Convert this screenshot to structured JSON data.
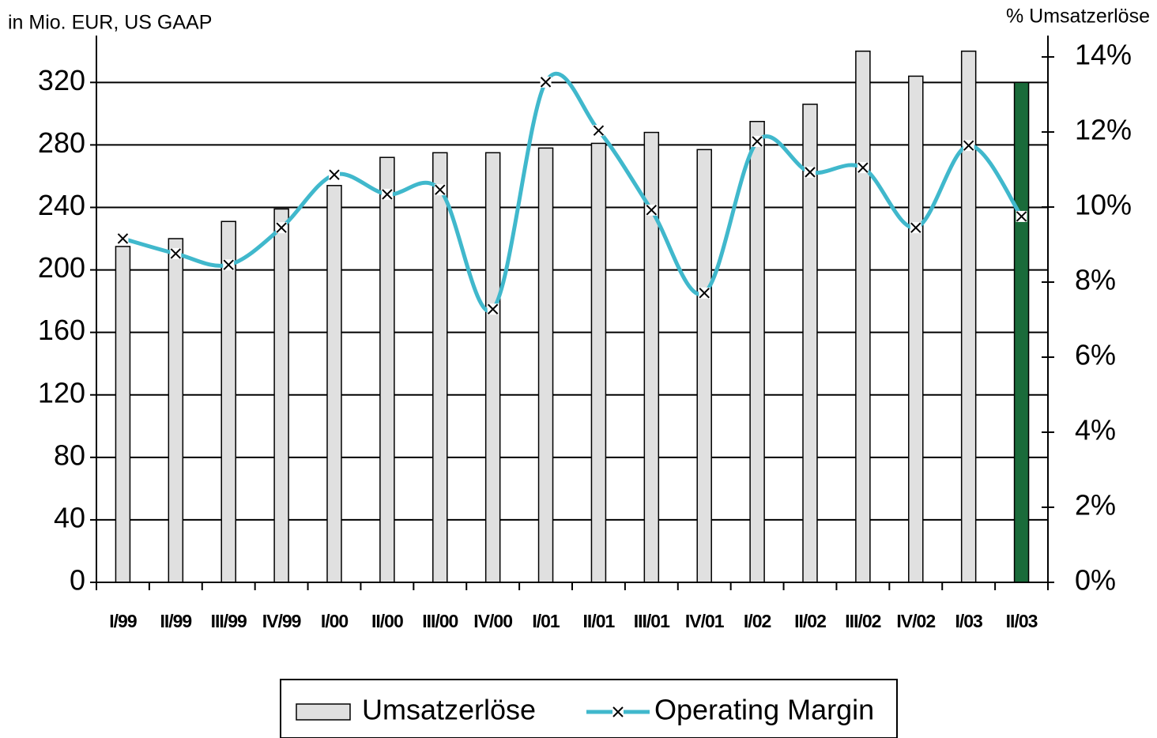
{
  "chart_data": {
    "type": "bar_line",
    "y_label": "in Mio. EUR, US GAAP",
    "y2_label": "% Umsatzerlöse",
    "categories": [
      "I/99",
      "II/99",
      "III/99",
      "IV/99",
      "I/00",
      "II/00",
      "III/00",
      "IV/00",
      "I/01",
      "II/01",
      "III/01",
      "IV/01",
      "I/02",
      "II/02",
      "III/02",
      "IV/02",
      "I/03",
      "II/03"
    ],
    "series": [
      {
        "name": "Umsatzerlöse",
        "type": "bar",
        "color": "#e0e0e0",
        "colors": [
          "#e0e0e0",
          "#e0e0e0",
          "#e0e0e0",
          "#e0e0e0",
          "#e0e0e0",
          "#e0e0e0",
          "#e0e0e0",
          "#e0e0e0",
          "#e0e0e0",
          "#e0e0e0",
          "#e0e0e0",
          "#e0e0e0",
          "#e0e0e0",
          "#e0e0e0",
          "#e0e0e0",
          "#e0e0e0",
          "#e0e0e0",
          "#1a6b3a"
        ],
        "values": [
          215,
          220,
          231,
          239,
          254,
          272,
          275,
          275,
          278,
          281,
          288,
          277,
          295,
          306,
          340,
          324,
          340,
          320
        ]
      },
      {
        "name": "Operating Margin",
        "type": "line",
        "axis": "y2",
        "color": "#40b8cc",
        "values": [
          9.16,
          8.76,
          8.46,
          9.45,
          10.86,
          10.34,
          10.46,
          7.28,
          13.33,
          12.04,
          9.92,
          7.71,
          11.75,
          10.93,
          11.05,
          9.45,
          11.64,
          9.75
        ]
      }
    ],
    "ylim": [
      0,
      350
    ],
    "yticks": [
      0,
      40,
      80,
      120,
      160,
      200,
      240,
      280,
      320
    ],
    "y2lim": [
      0,
      14.57
    ],
    "y2ticks": [
      {
        "value": 0,
        "label": "0%"
      },
      {
        "value": 2,
        "label": "2%"
      },
      {
        "value": 4,
        "label": "4%"
      },
      {
        "value": 6,
        "label": "6%"
      },
      {
        "value": 8,
        "label": "8%"
      },
      {
        "value": 10,
        "label": "10%"
      },
      {
        "value": 12,
        "label": "12%"
      },
      {
        "value": 14,
        "label": "14%"
      }
    ],
    "grid": true,
    "legend": "bottom"
  }
}
